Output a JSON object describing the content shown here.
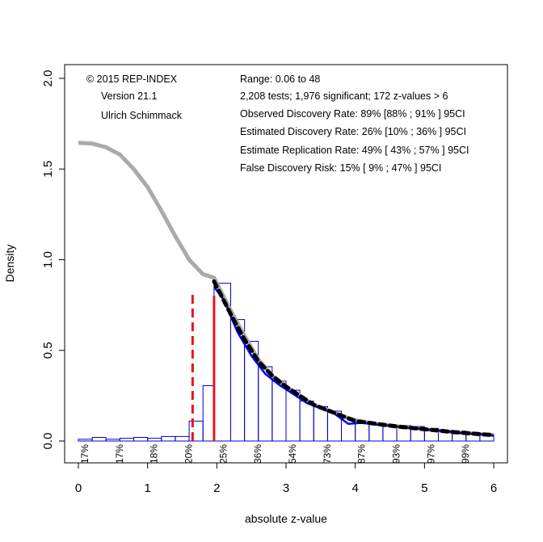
{
  "chart_data": {
    "type": "bar",
    "xlabel": "absolute z-value",
    "ylabel": "Density",
    "xlim": [
      0,
      6
    ],
    "ylim": [
      0,
      2
    ],
    "x_ticks": [
      "0",
      "1",
      "2",
      "3",
      "4",
      "5",
      "6"
    ],
    "y_ticks": [
      "0.0",
      "0.5",
      "1.0",
      "1.5",
      "2.0"
    ],
    "grid": false,
    "annotations_left": [
      "© 2015 REP-INDEX",
      "Version 21.1",
      "Ulrich Schimmack"
    ],
    "annotations_right": [
      "Range: 0.06 to 48",
      "2,208 tests; 1,976 significant; 172 z-values > 6",
      "Observed Discovery Rate: 89% [88% ; 91% ] 95CI",
      "Estimated Discovery Rate: 26% [10% ; 36% ] 95CI",
      "Estimate Replication Rate: 49% [ 43% ; 57% ] 95CI",
      "False Discovery Risk: 15% [ 9% ; 47% ] 95CI"
    ],
    "histogram": {
      "bin_edges": [
        0,
        0.2,
        0.4,
        0.6,
        0.8,
        1.0,
        1.2,
        1.4,
        1.6,
        1.8,
        1.96,
        2.2,
        2.4,
        2.6,
        2.8,
        3.0,
        3.2,
        3.4,
        3.6,
        3.8,
        4.0,
        4.2,
        4.4,
        4.6,
        4.8,
        5.0,
        5.2,
        5.4,
        5.6,
        5.8,
        6.0
      ],
      "densities": [
        0.01,
        0.02,
        0.01,
        0.015,
        0.02,
        0.015,
        0.025,
        0.025,
        0.11,
        0.305,
        0.87,
        0.67,
        0.55,
        0.41,
        0.33,
        0.28,
        0.22,
        0.19,
        0.165,
        0.125,
        0.11,
        0.1,
        0.09,
        0.085,
        0.08,
        0.07,
        0.06,
        0.055,
        0.04,
        0.035
      ]
    },
    "bottom_percent_labels": [
      {
        "x": 0.15,
        "label": "17%"
      },
      {
        "x": 0.65,
        "label": "17%"
      },
      {
        "x": 1.15,
        "label": "18%"
      },
      {
        "x": 1.65,
        "label": "20%"
      },
      {
        "x": 2.15,
        "label": "25%"
      },
      {
        "x": 2.65,
        "label": "36%"
      },
      {
        "x": 3.15,
        "label": "54%"
      },
      {
        "x": 3.65,
        "label": "73%"
      },
      {
        "x": 4.15,
        "label": "87%"
      },
      {
        "x": 4.65,
        "label": "93%"
      },
      {
        "x": 5.15,
        "label": "97%"
      },
      {
        "x": 5.65,
        "label": "99%"
      }
    ],
    "selection_model_curve_gray": {
      "x": [
        0.0,
        0.2,
        0.4,
        0.6,
        0.8,
        1.0,
        1.2,
        1.4,
        1.6,
        1.8,
        1.96,
        2.2,
        2.4,
        2.6,
        2.8,
        3.0,
        3.2,
        3.4,
        3.6,
        3.8,
        4.0,
        4.2,
        4.4,
        4.6,
        4.8,
        5.0,
        5.2,
        5.4,
        5.6,
        5.8,
        6.0
      ],
      "y": [
        1.645,
        1.64,
        1.62,
        1.58,
        1.5,
        1.4,
        1.27,
        1.13,
        1.0,
        0.92,
        0.9,
        0.72,
        0.58,
        0.45,
        0.36,
        0.3,
        0.25,
        0.2,
        0.17,
        0.14,
        0.115,
        0.1,
        0.09,
        0.08,
        0.073,
        0.065,
        0.058,
        0.05,
        0.044,
        0.038,
        0.033
      ]
    },
    "fitted_curve_black_dashed": {
      "x": [
        1.96,
        2.2,
        2.4,
        2.6,
        2.8,
        3.0,
        3.2,
        3.4,
        3.6,
        3.8,
        4.0,
        4.2,
        4.4,
        4.6,
        4.8,
        5.0,
        5.2,
        5.4,
        5.6,
        5.8,
        6.0
      ],
      "y": [
        0.88,
        0.7,
        0.56,
        0.44,
        0.36,
        0.3,
        0.25,
        0.2,
        0.17,
        0.14,
        0.11,
        0.1,
        0.09,
        0.08,
        0.073,
        0.065,
        0.058,
        0.05,
        0.044,
        0.038,
        0.033
      ]
    },
    "density_curve_blue": {
      "x": [
        1.96,
        2.1,
        2.3,
        2.5,
        2.7,
        2.9,
        3.1,
        3.3,
        3.5,
        3.7,
        3.9,
        4.1,
        4.3,
        4.5,
        4.7,
        4.9,
        5.1,
        5.3,
        5.5,
        5.7,
        5.9,
        6.0
      ],
      "y": [
        0.85,
        0.78,
        0.6,
        0.47,
        0.37,
        0.31,
        0.26,
        0.21,
        0.18,
        0.15,
        0.095,
        0.1,
        0.09,
        0.085,
        0.075,
        0.07,
        0.06,
        0.055,
        0.045,
        0.04,
        0.035,
        0.03
      ]
    },
    "reference_lines": [
      {
        "x": 1.65,
        "y_top": 0.81,
        "style": "dashed",
        "color": "#e8141a"
      },
      {
        "x": 1.96,
        "y_top": 0.8,
        "style": "solid",
        "color": "#e8141a"
      }
    ],
    "colors": {
      "bars": "#0000cc",
      "gray_curve": "#aaaaaa",
      "fitted_curve": "#000000",
      "density_curve": "#0000ff",
      "reference_lines": "#e8141a"
    }
  }
}
